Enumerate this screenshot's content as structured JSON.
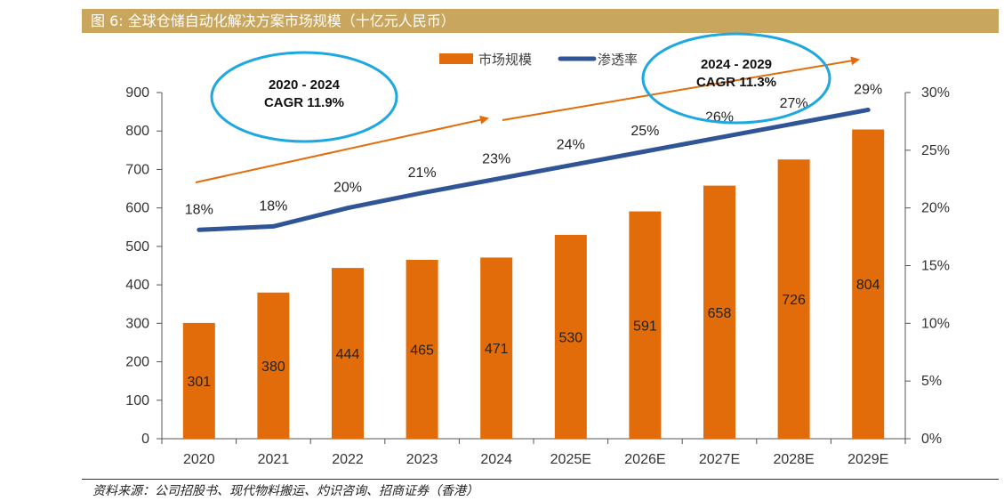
{
  "figure": {
    "title": "图 6:  全球仓储自动化解决方案市场规模（十亿元人民币）",
    "source": "资料来源：公司招股书、现代物料搬运、灼识咨询、招商证券（香港）"
  },
  "chart_data": {
    "type": "bar+line",
    "categories": [
      "2020",
      "2021",
      "2022",
      "2023",
      "2024",
      "2025E",
      "2026E",
      "2027E",
      "2028E",
      "2029E"
    ],
    "series": [
      {
        "name": "市场规模",
        "type": "bar",
        "axis": "left",
        "color": "#e36c0a",
        "values": [
          301,
          380,
          444,
          465,
          471,
          530,
          591,
          658,
          726,
          804
        ],
        "labels": [
          "301",
          "380",
          "444",
          "465",
          "471",
          "530",
          "591",
          "658",
          "726",
          "804"
        ]
      },
      {
        "name": "渗透率",
        "type": "line",
        "axis": "right",
        "color": "#2f5597",
        "values": [
          18.1,
          18.4,
          20.0,
          21.3,
          22.5,
          23.7,
          24.9,
          26.1,
          27.3,
          28.5
        ],
        "labels": [
          "18%",
          "18%",
          "20%",
          "21%",
          "23%",
          "24%",
          "25%",
          "26%",
          "27%",
          "29%"
        ]
      }
    ],
    "y_left": {
      "min": 0,
      "max": 900,
      "step": 100,
      "ticks": [
        "0",
        "100",
        "200",
        "300",
        "400",
        "500",
        "600",
        "700",
        "800",
        "900"
      ]
    },
    "y_right": {
      "min": 0,
      "max": 30,
      "step": 5,
      "ticks": [
        "0%",
        "5%",
        "10%",
        "15%",
        "20%",
        "25%",
        "30%"
      ]
    },
    "legend": {
      "position": "top-center",
      "entries": [
        "市场规模",
        "渗透率"
      ]
    },
    "annotations": [
      {
        "line1": "2020 - 2024",
        "line2": "CAGR 11.9%"
      },
      {
        "line1": "2024 - 2029",
        "line2": "CAGR 11.3%"
      }
    ]
  },
  "colors": {
    "header": "#c8a65e",
    "bar": "#e36c0a",
    "line": "#2f5597",
    "ellipse": "#1fa8e0",
    "arrow": "#e36c0a"
  }
}
